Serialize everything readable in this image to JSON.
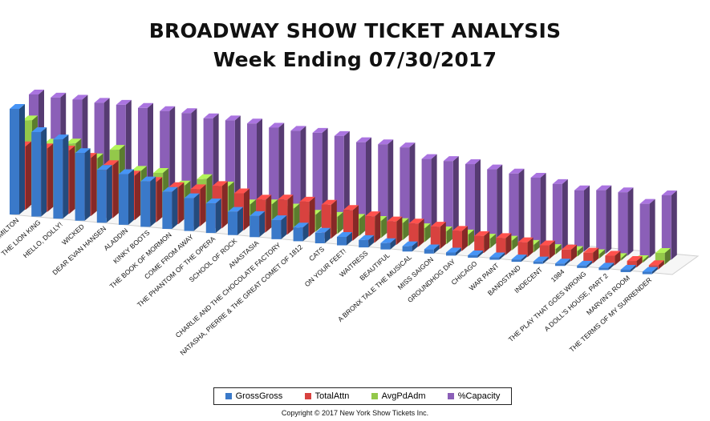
{
  "title": "BROADWAY SHOW TICKET ANALYSIS",
  "subtitle": "Week Ending 07/30/2017",
  "copyright": "Copyright © 2017 New York Show Tickets Inc.",
  "colors": {
    "GrossGross": "#3a79c9",
    "TotalAttn": "#d8423f",
    "AvgPdAdm": "#93c84a",
    "%Capacity": "#8b5fb8"
  },
  "chart_data": {
    "type": "bar",
    "categories": [
      "HAMILTON",
      "THE LION KING",
      "HELLO, DOLLY!",
      "WICKED",
      "DEAR EVAN HANSEN",
      "ALADDIN",
      "KINKY BOOTS",
      "THE BOOK OF MORMON",
      "COME FROM AWAY",
      "THE PHANTOM OF THE OPERA",
      "SCHOOL OF ROCK",
      "ANASTASIA",
      "CHARLIE AND THE CHOCOLATE FACTORY",
      "NATASHA, PIERRE & THE GREAT COMET OF 1812",
      "CATS",
      "ON YOUR FEET!",
      "WAITRESS",
      "BEAUTIFUL",
      "A BRONX TALE THE MUSICAL",
      "MISS SAIGON",
      "GROUNDHOG DAY",
      "CHICAGO",
      "WAR PAINT",
      "BANDSTAND",
      "INDECENT",
      "1984",
      "THE PLAY THAT GOES WRONG",
      "A DOLL'S HOUSE, PART 2",
      "MARVIN'S ROOM",
      "THE TERMS OF MY SURRENDER"
    ],
    "series": [
      {
        "name": "GrossGross",
        "values": [
          100,
          80,
          75,
          64,
          50,
          48,
          43,
          35,
          31,
          28,
          22,
          20,
          18,
          13,
          10,
          8,
          7,
          6,
          5,
          4,
          3,
          2,
          2,
          1,
          1,
          0,
          0,
          0,
          0,
          0
        ]
      },
      {
        "name": "TotalAttn",
        "values": [
          60,
          60,
          60,
          55,
          50,
          42,
          38,
          35,
          35,
          40,
          35,
          31,
          33,
          33,
          32,
          29,
          25,
          22,
          22,
          21,
          19,
          16,
          16,
          14,
          13,
          11,
          10,
          9,
          6,
          4
        ]
      },
      {
        "name": "AvgPdAdm",
        "values": [
          80,
          60,
          62,
          50,
          60,
          42,
          42,
          32,
          40,
          35,
          20,
          22,
          20,
          16,
          16,
          16,
          16,
          16,
          13,
          12,
          11,
          9,
          9,
          7,
          5,
          5,
          4,
          2,
          2,
          11
        ]
      },
      {
        "name": "%Capacity",
        "values": [
          100,
          99,
          99,
          98,
          98,
          97,
          96,
          96,
          93,
          93,
          92,
          90,
          89,
          89,
          88,
          84,
          84,
          83,
          74,
          74,
          73,
          70,
          68,
          66,
          62,
          58,
          60,
          60,
          51,
          61
        ]
      }
    ]
  },
  "legend": {
    "s1": "GrossGross",
    "s2": "TotalAttn",
    "s3": "AvgPdAdm",
    "s4": "%Capacity"
  }
}
